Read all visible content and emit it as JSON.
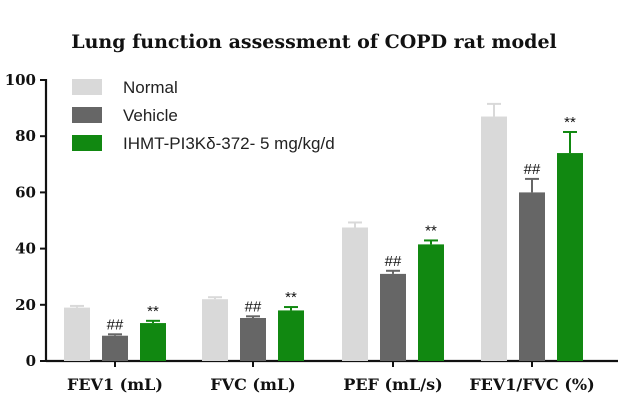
{
  "chart_data": {
    "type": "bar",
    "title": "Lung function assessment of COPD rat model",
    "xlabel": "",
    "ylabel": "",
    "ylim": [
      0,
      100
    ],
    "yticks": [
      0,
      20,
      40,
      60,
      80,
      100
    ],
    "categories": [
      "FEV1 (mL)",
      "FVC (mL)",
      "PEF (mL/s)",
      "FEV1/FVC (%)"
    ],
    "series": [
      {
        "name": "Normal",
        "color": "#d9d9d9",
        "values": [
          19,
          22,
          47.5,
          87
        ],
        "errors": [
          0.6,
          0.7,
          1.8,
          4.5
        ],
        "markers": [
          "",
          "",
          "",
          ""
        ]
      },
      {
        "name": "Vehicle",
        "color": "#666666",
        "values": [
          9,
          15.3,
          31,
          60
        ],
        "errors": [
          0.5,
          0.6,
          1.1,
          4.8
        ],
        "markers": [
          "##",
          "##",
          "##",
          "##"
        ]
      },
      {
        "name": "IHMT-PI3Kδ-372- 5 mg/kg/d",
        "color": "#118811",
        "values": [
          13.5,
          18,
          41.5,
          74
        ],
        "errors": [
          0.8,
          1.2,
          1.4,
          7.5
        ],
        "markers": [
          "**",
          "**",
          "**",
          "**"
        ]
      }
    ],
    "legend_position": "top-left",
    "grid": false
  }
}
